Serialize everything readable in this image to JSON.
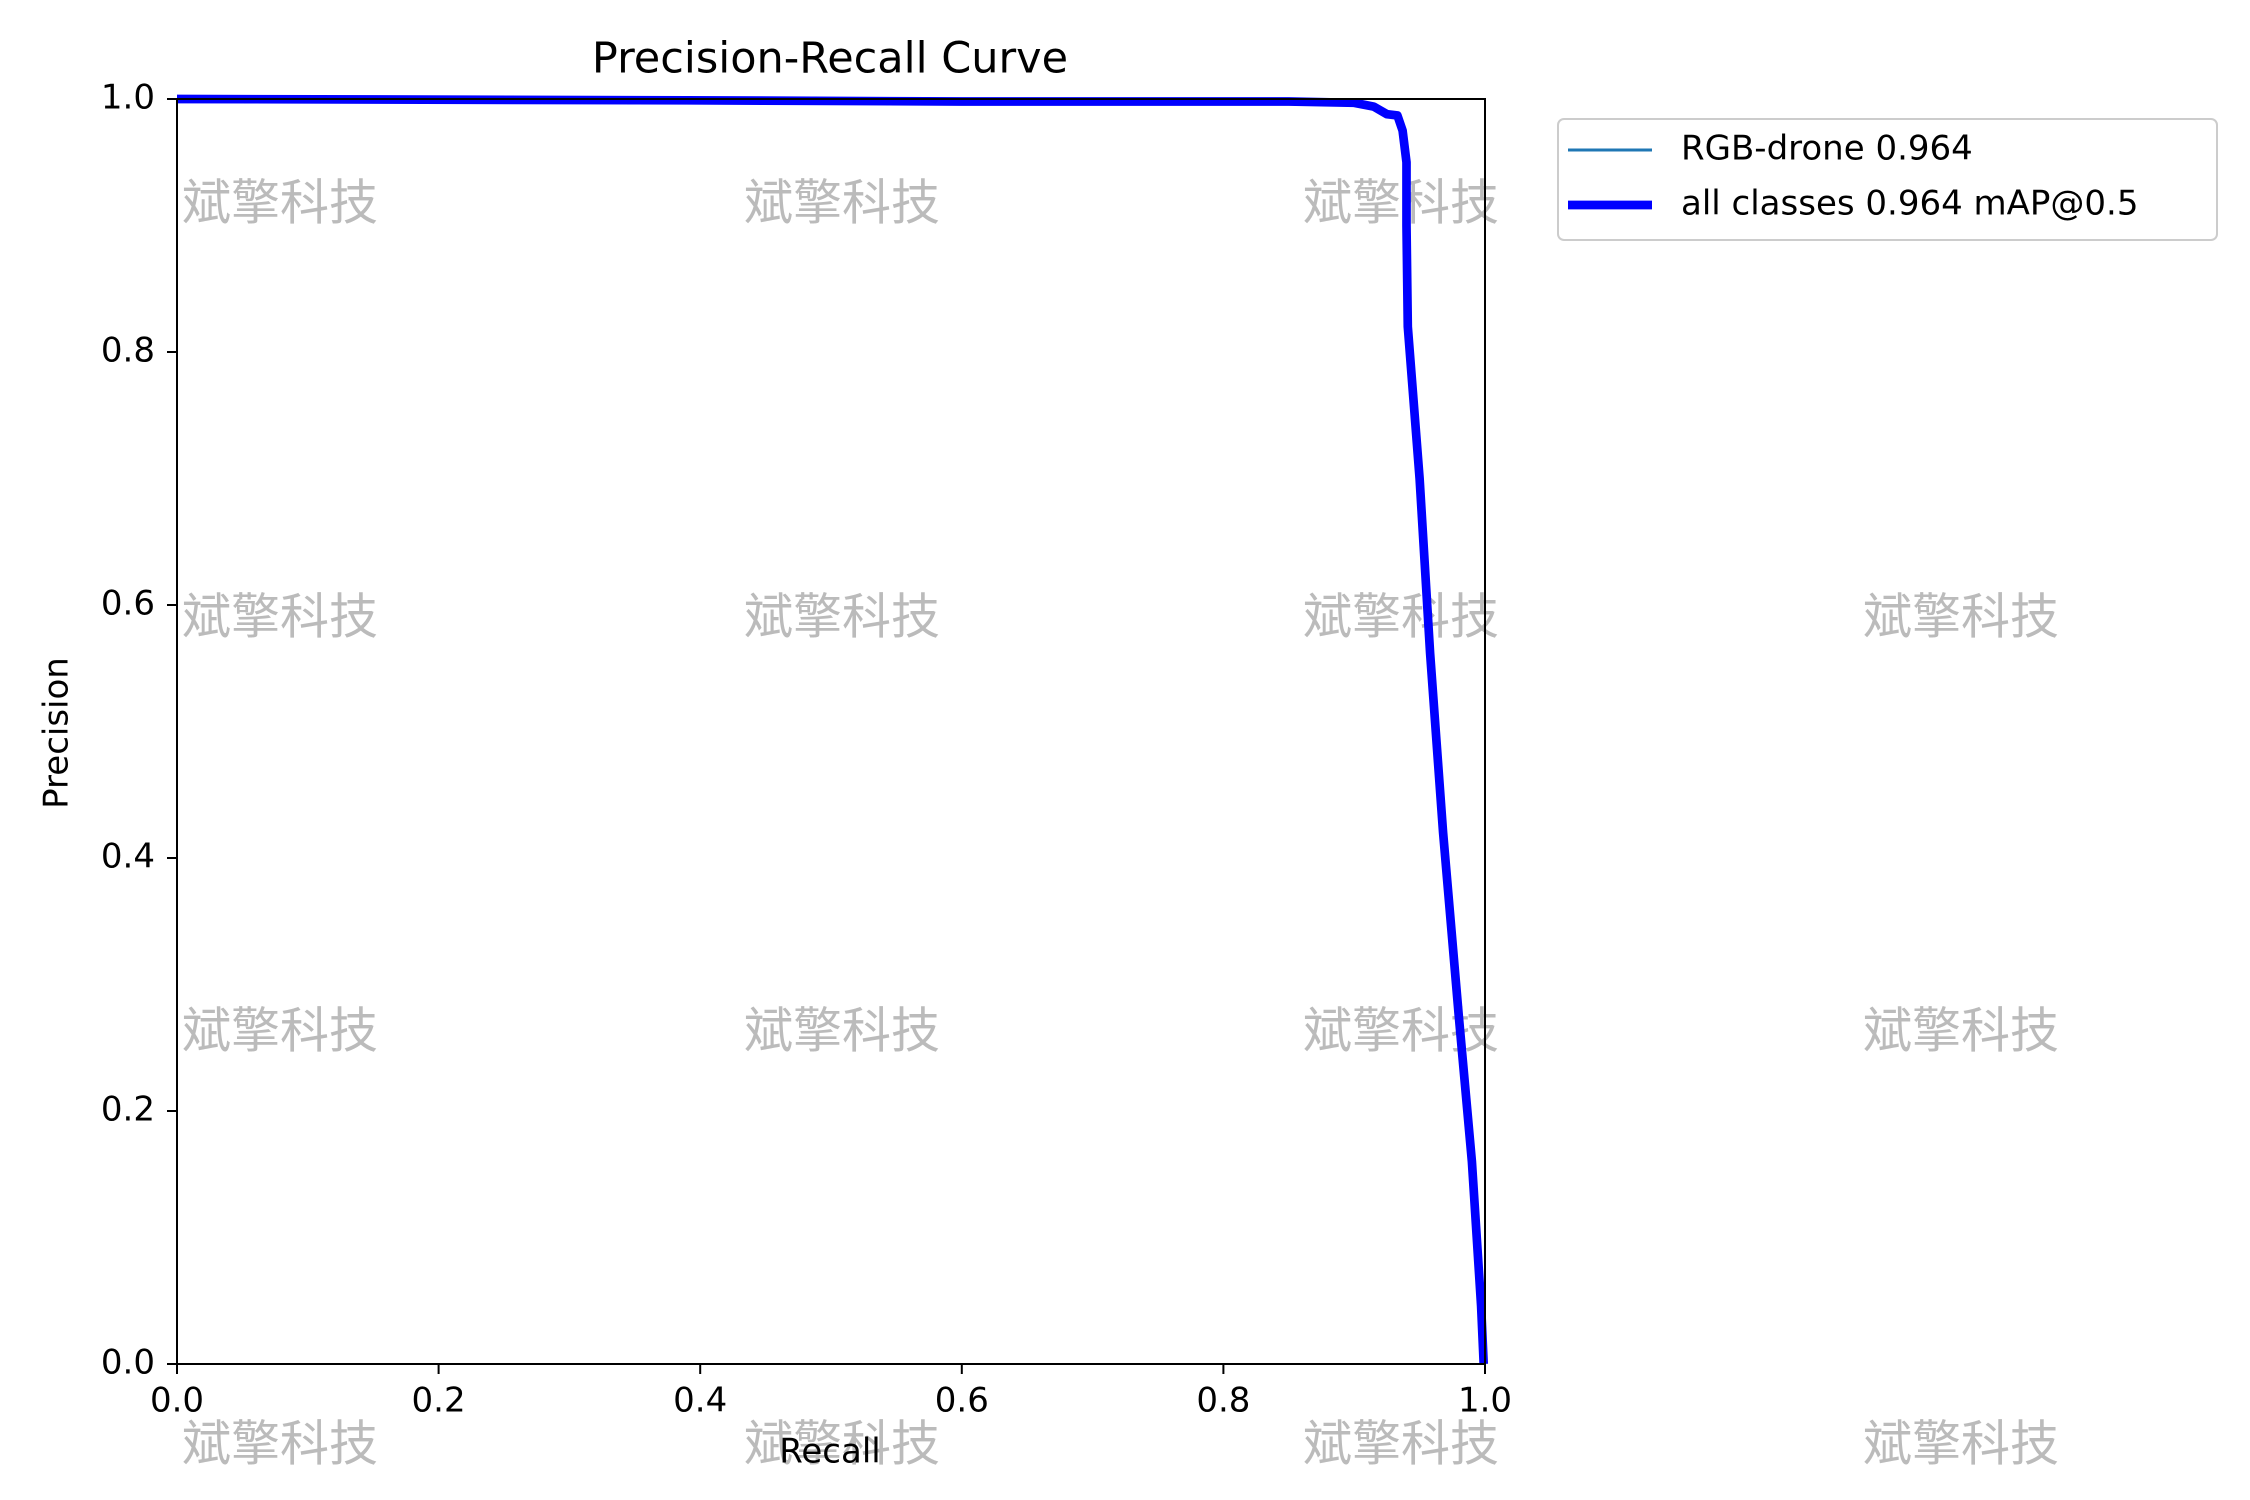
{
  "chart_data": {
    "type": "line",
    "title": "Precision-Recall Curve",
    "x_label": "Recall",
    "y_label": "Precision",
    "x": [
      0,
      0.39,
      0.6,
      0.85,
      0.9,
      0.915,
      0.925,
      0.933,
      0.937,
      0.94,
      0.94,
      0.941,
      0.95,
      0.958,
      0.968,
      0.98,
      0.99,
      0.997,
      0.999
    ],
    "series": [
      {
        "name": "RGB-drone 0.964",
        "color": "#1f77b4",
        "width": 1,
        "values": [
          1.0,
          0.999,
          0.998,
          0.998,
          0.997,
          0.994,
          0.988,
          0.987,
          0.975,
          0.95,
          0.9,
          0.82,
          0.7,
          0.562,
          0.42,
          0.275,
          0.16,
          0.046,
          0.0
        ]
      },
      {
        "name": "all classes 0.964 mAP@0.5",
        "color": "#0000ff",
        "width": 3,
        "values": [
          1.0,
          0.999,
          0.998,
          0.998,
          0.997,
          0.994,
          0.988,
          0.987,
          0.975,
          0.95,
          0.9,
          0.82,
          0.7,
          0.562,
          0.42,
          0.275,
          0.16,
          0.046,
          0.0
        ]
      }
    ],
    "xlim": [
      0,
      1
    ],
    "ylim": [
      0,
      1
    ],
    "xticks": [
      {
        "value": 0,
        "label": "0.0"
      },
      0.2,
      0.4,
      0.6,
      0.8,
      {
        "value": 1,
        "label": "1.0"
      }
    ],
    "yticks": [
      {
        "value": 0,
        "label": "0.0"
      },
      0.2,
      0.4,
      0.6,
      0.8,
      {
        "value": 1,
        "label": "1.0"
      }
    ],
    "grid": false,
    "legend": "outside upper right",
    "watermark": "斌擎科技"
  }
}
